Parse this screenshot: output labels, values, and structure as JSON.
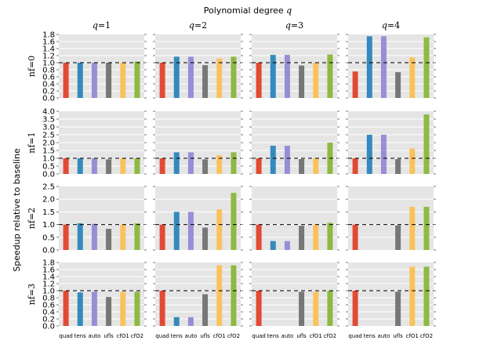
{
  "chart_data": {
    "type": "bar",
    "title": "Polynomial degree q",
    "title_prefix": "Polynomial degree",
    "title_var": "q",
    "ylabel": "Speedup relative to baseline",
    "baseline": 1.0,
    "categories": [
      "quad",
      "tens",
      "auto",
      "ufls",
      "cfO1",
      "cfO2"
    ],
    "colors": [
      "#e24a33",
      "#348abd",
      "#988ed5",
      "#777777",
      "#fbc15e",
      "#8eba42"
    ],
    "col_labels": [
      "q = 1",
      "q = 2",
      "q = 3",
      "q = 4"
    ],
    "row_labels": [
      "nf = 0",
      "nf = 1",
      "nf = 2",
      "nf = 3"
    ],
    "rows": [
      {
        "ylim": [
          0,
          1.8
        ],
        "yticks": [
          "0.0",
          "0.2",
          "0.4",
          "0.6",
          "0.8",
          "1.0",
          "1.2",
          "1.4",
          "1.6",
          "1.8"
        ],
        "ytick_values": [
          0,
          0.2,
          0.4,
          0.6,
          0.8,
          1.0,
          1.2,
          1.4,
          1.6,
          1.8
        ],
        "panels": [
          [
            1.0,
            1.0,
            1.0,
            1.0,
            1.0,
            1.03
          ],
          [
            1.0,
            1.17,
            1.17,
            0.93,
            1.12,
            1.17
          ],
          [
            1.0,
            1.22,
            1.22,
            0.92,
            1.0,
            1.23
          ],
          [
            0.75,
            1.75,
            1.75,
            0.73,
            1.15,
            1.72
          ]
        ]
      },
      {
        "ylim": [
          0,
          4.0
        ],
        "yticks": [
          "0.0",
          "0.5",
          "1.0",
          "1.5",
          "2.0",
          "2.5",
          "3.0",
          "3.5",
          "4.0"
        ],
        "ytick_values": [
          0,
          0.5,
          1.0,
          1.5,
          2.0,
          2.5,
          3.0,
          3.5,
          4.0
        ],
        "panels": [
          [
            1.0,
            1.0,
            1.0,
            0.93,
            1.0,
            1.0
          ],
          [
            1.0,
            1.38,
            1.38,
            0.93,
            1.2,
            1.38
          ],
          [
            1.0,
            1.8,
            1.8,
            0.95,
            1.0,
            2.0
          ],
          [
            1.0,
            2.5,
            2.5,
            0.95,
            1.62,
            3.8
          ]
        ]
      },
      {
        "ylim": [
          0,
          2.5
        ],
        "yticks": [
          "0.0",
          "0.5",
          "1.0",
          "1.5",
          "2.0",
          "2.5"
        ],
        "ytick_values": [
          0,
          0.5,
          1.0,
          1.5,
          2.0,
          2.5
        ],
        "panels": [
          [
            1.0,
            1.05,
            1.03,
            0.83,
            1.0,
            1.05
          ],
          [
            1.0,
            1.5,
            1.5,
            0.88,
            1.6,
            2.25
          ],
          [
            1.0,
            0.35,
            0.35,
            0.95,
            1.0,
            1.07
          ],
          [
            1.0,
            0.0,
            0.0,
            0.97,
            1.7,
            1.7
          ]
        ]
      },
      {
        "ylim": [
          0,
          1.8
        ],
        "yticks": [
          "0.0",
          "0.2",
          "0.4",
          "0.6",
          "0.8",
          "1.0",
          "1.2",
          "1.4",
          "1.6",
          "1.8"
        ],
        "ytick_values": [
          0,
          0.2,
          0.4,
          0.6,
          0.8,
          1.0,
          1.2,
          1.4,
          1.6,
          1.8
        ],
        "panels": [
          [
            1.0,
            0.95,
            0.97,
            0.82,
            0.97,
            0.97
          ],
          [
            1.0,
            0.25,
            0.25,
            0.9,
            1.72,
            1.72
          ],
          [
            1.0,
            0.0,
            0.0,
            0.97,
            0.97,
            1.0
          ],
          [
            1.0,
            0.0,
            0.0,
            0.97,
            1.68,
            1.68
          ]
        ]
      }
    ]
  }
}
